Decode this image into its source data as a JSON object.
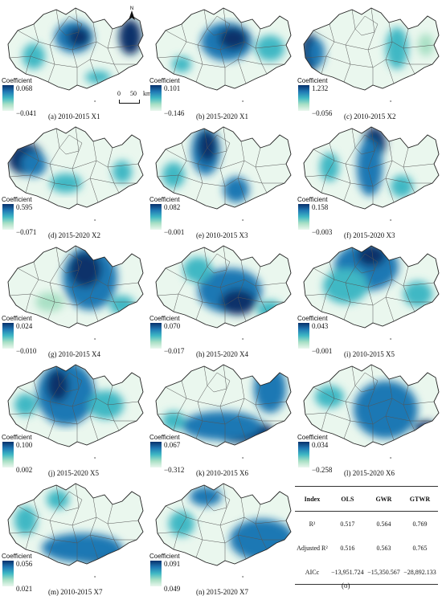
{
  "legend_title": "Coefficient",
  "north_label": "N",
  "scale": {
    "zero": "0",
    "dist": "50",
    "unit": "km"
  },
  "panels": [
    {
      "caption": "(a) 2010-2015 X1",
      "max": "0.068",
      "min": "−0.041",
      "pattern": "a"
    },
    {
      "caption": "(b) 2015-2020 X1",
      "max": "0.101",
      "min": "−0.146",
      "pattern": "b"
    },
    {
      "caption": "(c) 2010-2015 X2",
      "max": "1.232",
      "min": "−0.056",
      "pattern": "c"
    },
    {
      "caption": "(d) 2015-2020 X2",
      "max": "0.595",
      "min": "−0.071",
      "pattern": "d"
    },
    {
      "caption": "(e) 2010-2015 X3",
      "max": "0.082",
      "min": "−0.001",
      "pattern": "e"
    },
    {
      "caption": "(f) 2015-2020 X3",
      "max": "0.158",
      "min": "−0.003",
      "pattern": "f"
    },
    {
      "caption": "(g) 2010-2015 X4",
      "max": "0.024",
      "min": "−0.010",
      "pattern": "g"
    },
    {
      "caption": "(h) 2015-2020 X4",
      "max": "0.070",
      "min": "−0.017",
      "pattern": "h"
    },
    {
      "caption": "(i) 2010-2015 X5",
      "max": "0.043",
      "min": "−0.001",
      "pattern": "i"
    },
    {
      "caption": "(j) 2015-2020 X5",
      "max": "0.100",
      "min": "0.002",
      "pattern": "j"
    },
    {
      "caption": "(k) 2010-2015 X6",
      "max": "0.067",
      "min": "−0.312",
      "pattern": "k"
    },
    {
      "caption": "(l) 2015-2020 X6",
      "max": "0.034",
      "min": "−0.258",
      "pattern": "l"
    },
    {
      "caption": "(m) 2010-2015 X7",
      "max": "0.056",
      "min": "0.021",
      "pattern": "m"
    },
    {
      "caption": "(n) 2015-2020 X7",
      "max": "0.091",
      "min": "0.049",
      "pattern": "n"
    }
  ],
  "table": {
    "headers": [
      "Index",
      "OLS",
      "GWR",
      "GTWR"
    ],
    "rows": [
      [
        "R²",
        "0.517",
        "0.564",
        "0.769"
      ],
      [
        "Adjusted R²",
        "0.516",
        "0.563",
        "0.765"
      ],
      [
        "AICc",
        "−13,951.724",
        "−15,350.567",
        "−28,892.133"
      ]
    ],
    "caption": "(o)"
  },
  "colors": {
    "dark": "#08306b",
    "mid": "#1f78b4",
    "teal": "#3fb8c4",
    "light": "#a9e0c5",
    "pale": "#eaf7ee",
    "boundary": "#222222"
  }
}
